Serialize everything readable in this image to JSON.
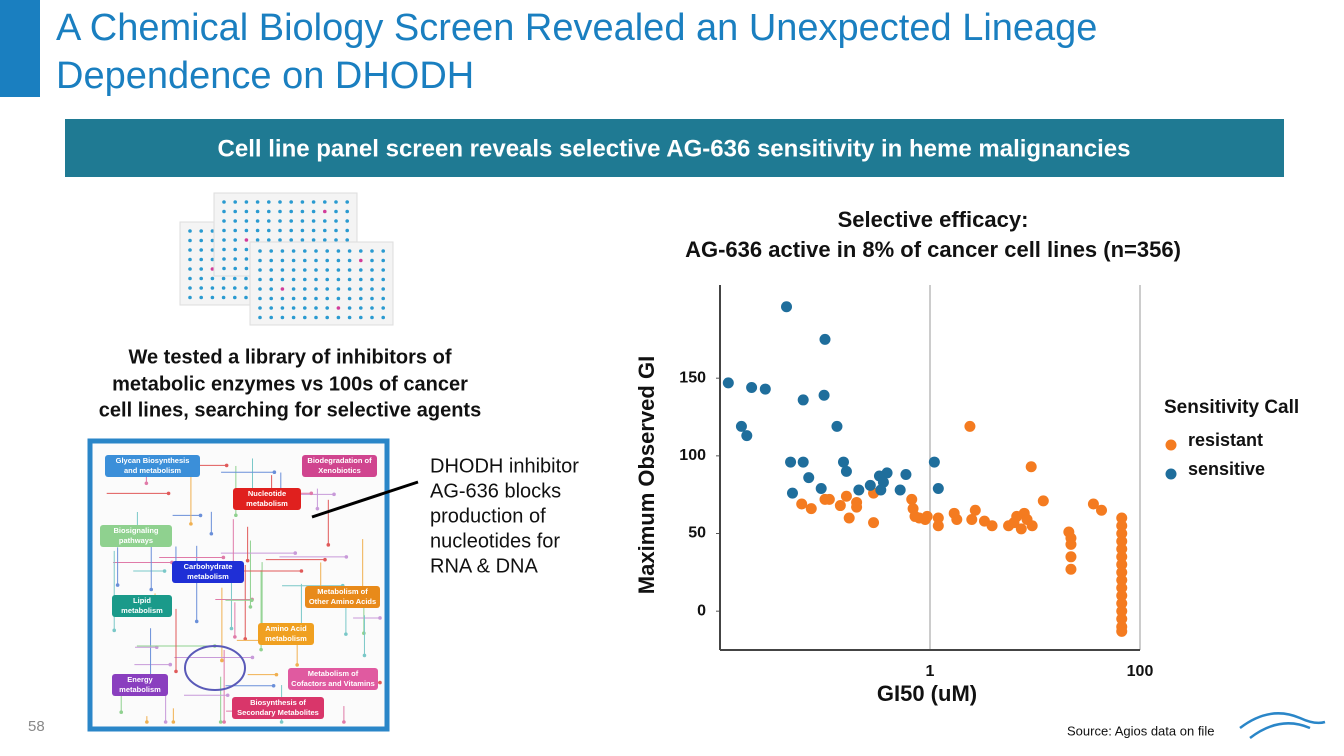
{
  "slide": {
    "title_lines": [
      "A Chemical Biology Screen Revealed an Unexpected Lineage",
      "Dependence on DHODH"
    ],
    "banner": "Cell line panel screen reveals selective AG-636 sensitivity in heme malignancies",
    "caption_lines": [
      "We tested a library of inhibitors of",
      "metabolic enzymes vs 100s of cancer",
      "cell lines, searching for selective agents"
    ],
    "callout_lines": [
      "DHODH inhibitor",
      "AG-636 blocks",
      "production of",
      "nucleotides for",
      "RNA & DNA"
    ],
    "map_labels": [
      [
        "Glycan Biosynthesis",
        "and metabolism"
      ],
      [
        "Biodegradation of",
        "Xenobiotics"
      ],
      [
        "Nucleotide",
        "metabolism"
      ],
      [
        "Biosignaling",
        "pathways"
      ],
      [
        "Carbohydrate",
        "metabolism"
      ],
      [
        "Lipid",
        "metabolism"
      ],
      [
        "Metabolism of",
        "Other Amino Acids"
      ],
      [
        "Amino Acid",
        "metabolism"
      ],
      [
        "Metabolism of",
        "Cofactors and Vitamins"
      ],
      [
        "Energy",
        "metabolism"
      ],
      [
        "Biosynthesis of",
        "Secondary Metabolites"
      ]
    ],
    "page_number": "58",
    "source": "Source: Agios data on file"
  },
  "chart_data": {
    "type": "scatter",
    "title_lines": [
      "Selective efficacy:",
      "AG-636 active in 8% of cancer cell lines (n=356)"
    ],
    "x_label": "GI50 (uM)",
    "y_label": "Maximum Observed GI",
    "x_log": true,
    "xlim": [
      0.01,
      100
    ],
    "xticks": [
      1,
      100
    ],
    "ylim": [
      -25,
      210
    ],
    "yticks": [
      0,
      50,
      100,
      150
    ],
    "grid": true,
    "legend_title": "Sensitivity Call",
    "legend": "right",
    "series": [
      {
        "name": "resistant",
        "color": "#f47b20",
        "x": [
          2.4,
          9.2,
          12,
          0.29,
          0.16,
          0.1,
          0.11,
          0.06,
          0.074,
          0.14,
          0.2,
          0.2,
          0.17,
          0.29,
          0.67,
          0.69,
          0.72,
          0.79,
          0.9,
          0.94,
          1.2,
          1.2,
          1.7,
          1.8,
          2.7,
          2.5,
          3.3,
          3.9,
          5.6,
          6.3,
          6.7,
          7.9,
          8.4,
          7.4,
          9.4,
          21,
          22,
          22,
          22,
          22,
          36,
          43,
          67,
          67,
          67,
          67,
          67,
          67,
          67,
          67,
          67,
          67,
          67,
          67,
          67,
          67,
          67,
          67
        ],
        "values": [
          119,
          93,
          71,
          76,
          74,
          72,
          72,
          69,
          66,
          68,
          70,
          67,
          60,
          57,
          72,
          66,
          61,
          60,
          59,
          61,
          60,
          55,
          63,
          59,
          65,
          59,
          58,
          55,
          55,
          57,
          61,
          63,
          59,
          53,
          55,
          51,
          47,
          43,
          35,
          27,
          69,
          65,
          60,
          55,
          50,
          45,
          40,
          35,
          30,
          25,
          20,
          15,
          10,
          5,
          0,
          -5,
          -10,
          -13
        ]
      },
      {
        "name": "sensitive",
        "color": "#1f6e9c",
        "x": [
          0.043,
          0.1,
          0.012,
          0.02,
          0.027,
          0.062,
          0.098,
          0.016,
          0.018,
          0.13,
          0.047,
          0.062,
          0.15,
          1.1,
          0.07,
          0.16,
          0.59,
          0.39,
          0.33,
          0.27,
          0.36,
          0.21,
          0.092,
          0.049,
          0.34,
          0.52,
          1.2
        ],
        "values": [
          196,
          175,
          147,
          144,
          143,
          136,
          139,
          119,
          113,
          119,
          96,
          96,
          96,
          96,
          86,
          90,
          88,
          89,
          87,
          81,
          83,
          78,
          79,
          76,
          78,
          78,
          79
        ]
      }
    ]
  }
}
